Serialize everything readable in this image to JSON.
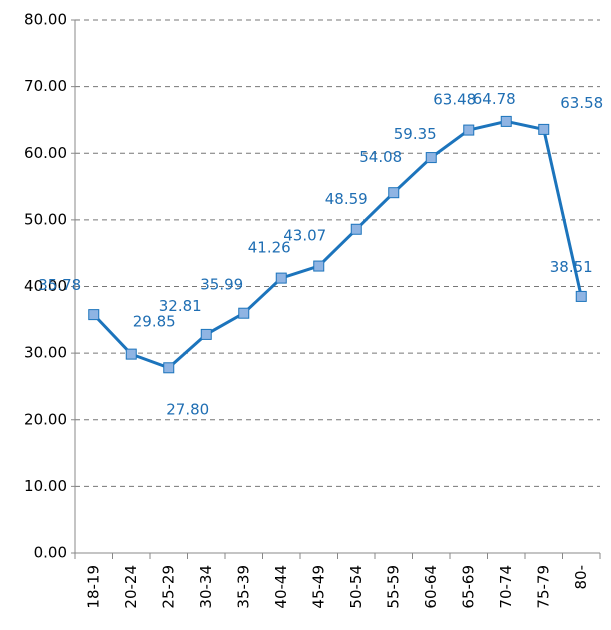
{
  "chart_data": {
    "type": "line",
    "categories": [
      "18-19",
      "20-24",
      "25-29",
      "30-34",
      "35-39",
      "40-44",
      "45-49",
      "50-54",
      "55-59",
      "60-64",
      "65-69",
      "70-74",
      "75-79",
      "80-"
    ],
    "series": [
      {
        "color": "#1c74bc",
        "values": [
          35.78,
          29.85,
          27.8,
          32.81,
          35.99,
          41.26,
          43.07,
          48.59,
          54.08,
          59.35,
          63.48,
          64.78,
          63.58,
          38.51
        ],
        "value_labels": [
          "35.78",
          "29.85",
          "27.80",
          "32.81",
          "35.99",
          "41.26",
          "43.07",
          "48.59",
          "54.08",
          "59.35",
          "63.48",
          "64.78",
          "63.58",
          "38.51"
        ]
      }
    ],
    "ylim": [
      0,
      80
    ],
    "yticks": [
      {
        "value": 0,
        "label": "0.00"
      },
      {
        "value": 10,
        "label": "10.00"
      },
      {
        "value": 20,
        "label": "20.00"
      },
      {
        "value": 30,
        "label": "30.00"
      },
      {
        "value": 40,
        "label": "40.00"
      },
      {
        "value": 50,
        "label": "50.00"
      },
      {
        "value": 60,
        "label": "60.00"
      },
      {
        "value": 70,
        "label": "70.00"
      },
      {
        "value": 80,
        "label": "80.00"
      }
    ],
    "grid": true
  }
}
